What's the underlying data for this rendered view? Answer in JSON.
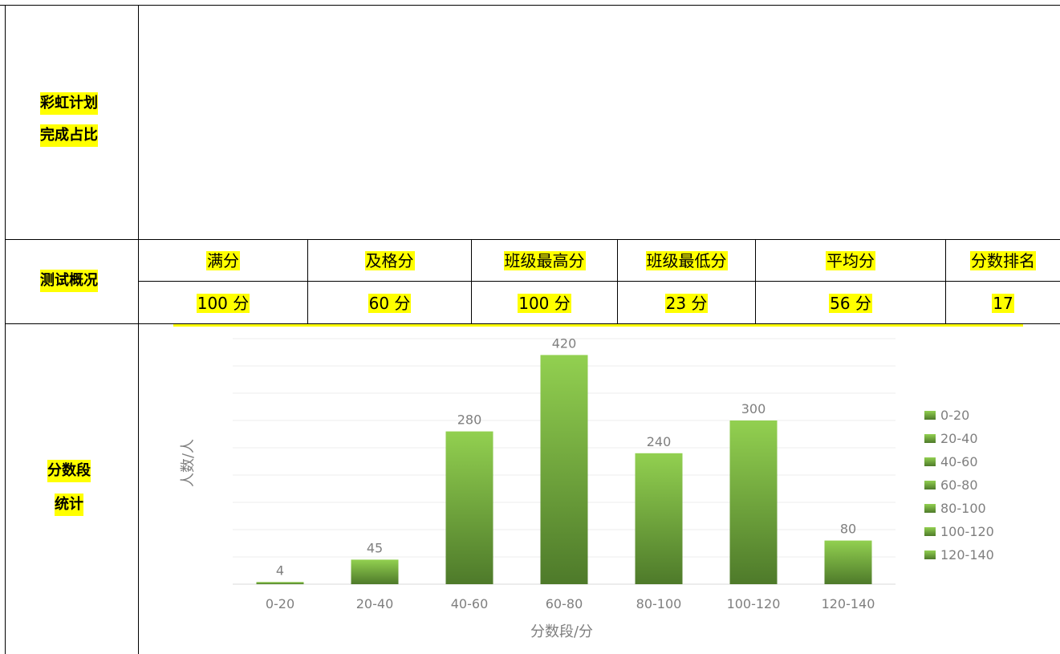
{
  "row_rainbow": {
    "label_line1": "彩虹计划",
    "label_line2": "完成占比"
  },
  "row_overview": {
    "label": "测试概况",
    "headers": [
      "满分",
      "及格分",
      "班级最高分",
      "班级最低分",
      "平均分",
      "分数排名"
    ],
    "values": [
      "100 分",
      "60 分",
      "100 分",
      "23 分",
      "56 分",
      "17"
    ]
  },
  "row_distribution": {
    "label_line1": "分数段",
    "label_line2": "统计"
  },
  "colors": {
    "highlight": "#ffff00",
    "bar_top": "#92d050",
    "bar_bottom": "#4e7a2a",
    "text_gray": "#7f7f7f"
  },
  "chart_data": {
    "type": "bar",
    "categories": [
      "0-20",
      "20-40",
      "40-60",
      "60-80",
      "80-100",
      "100-120",
      "120-140"
    ],
    "values": [
      4,
      45,
      280,
      420,
      240,
      300,
      80
    ],
    "xlabel": "分数段/分",
    "ylabel": "人数/人",
    "ylim": [
      0,
      450
    ],
    "grid": true,
    "legend_position": "right",
    "legend": [
      "0-20",
      "20-40",
      "40-60",
      "60-80",
      "80-100",
      "100-120",
      "120-140"
    ]
  }
}
